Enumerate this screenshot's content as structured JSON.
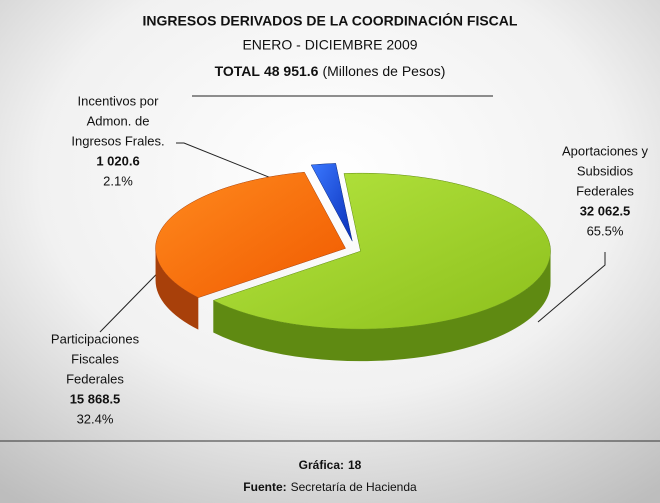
{
  "chart_data": {
    "type": "pie",
    "title": "INGRESOS DERIVADOS DE LA COORDINACIÓN FISCAL",
    "subtitle": "ENERO - DICIEMBRE 2009",
    "total_prefix": "TOTAL",
    "total": 48951.6,
    "total_label": "48 951.6",
    "unit": "(Millones de Pesos)",
    "categories": [
      [
        "Aportaciones y",
        "Subsidios",
        "Federales"
      ],
      [
        "Participaciones",
        "Fiscales",
        "Federales"
      ],
      [
        "Incentivos por",
        "Admon. de",
        "Ingresos Frales."
      ]
    ],
    "values": [
      32062.5,
      15868.5,
      1020.6
    ],
    "value_labels": [
      "32 062.5",
      "15 868.5",
      "1 020.6"
    ],
    "percents": [
      65.5,
      32.4,
      2.1
    ],
    "percent_labels": [
      "65.5%",
      "32.4%",
      "2.1%"
    ],
    "colors": [
      "#99cc22",
      "#ff6a0a",
      "#1447e0"
    ],
    "figure_label": "Gráfica:",
    "figure_number": 18,
    "source_label": "Fuente:",
    "source": "Secretaría de Hacienda"
  }
}
